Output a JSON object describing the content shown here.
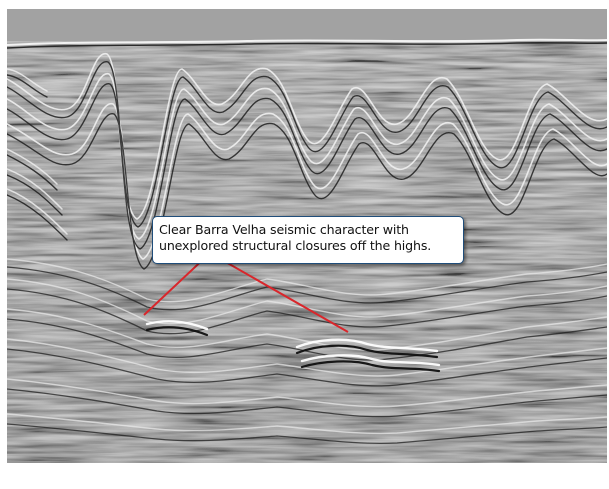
{
  "annotation": {
    "line1": "Clear Barra Velha seismic character with",
    "line2": "unexplored structural closures off the highs."
  },
  "colors": {
    "pointer_lines": "#d9262b",
    "box_border": "#1f4d7a",
    "seismic_base": "#8a8a8a"
  }
}
